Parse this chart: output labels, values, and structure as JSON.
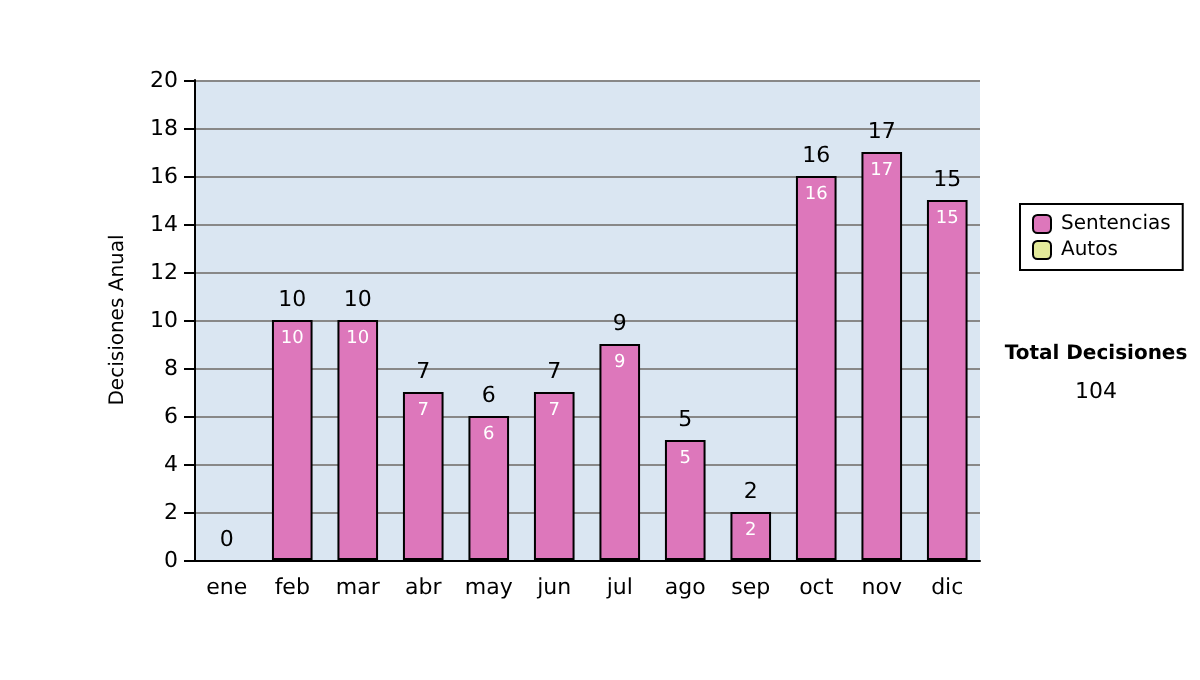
{
  "chart_data": {
    "type": "bar",
    "ylabel": "Decisiones Anual",
    "categories": [
      "ene",
      "feb",
      "mar",
      "abr",
      "may",
      "jun",
      "jul",
      "ago",
      "sep",
      "oct",
      "nov",
      "dic"
    ],
    "series": [
      {
        "name": "Sentencias",
        "color": "#dd77bb",
        "values": [
          0,
          10,
          10,
          7,
          6,
          7,
          9,
          5,
          2,
          16,
          17,
          15
        ],
        "value_labels": [
          null,
          "10",
          "10",
          "7",
          "6",
          "7",
          "9",
          "5",
          "2",
          "16",
          "17",
          "15"
        ]
      },
      {
        "name": "Autos",
        "color": "#e3ea9a",
        "values": [
          0,
          0,
          0,
          0,
          0,
          0,
          0,
          0,
          0,
          0,
          0,
          0
        ]
      }
    ],
    "stacked": true,
    "totals": [
      "0",
      "10",
      "10",
      "7",
      "6",
      "7",
      "9",
      "5",
      "2",
      "16",
      "17",
      "15"
    ],
    "ylim": [
      0,
      20
    ],
    "yticks": [
      0,
      2,
      4,
      6,
      8,
      10,
      12,
      14,
      16,
      18,
      20
    ],
    "grid": "y",
    "legend": "right",
    "annotations": [
      "Total Decisiones",
      "104"
    ]
  }
}
